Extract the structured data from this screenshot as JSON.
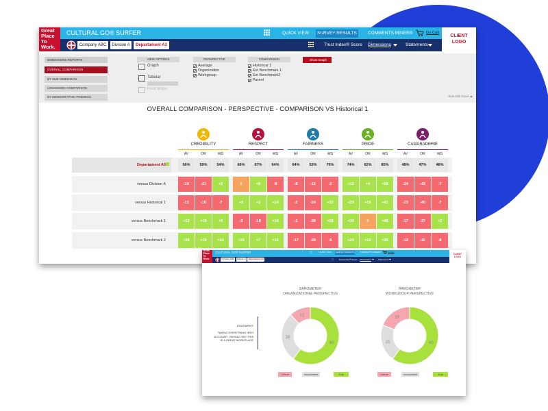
{
  "main": {
    "brand": "Great Place To Work.",
    "app_title": "CULTURAL GO® SURFER",
    "nav": [
      "QUICK VIEW",
      "SURVEY RESULTS",
      "COMMENTS MINER®"
    ],
    "cart": "Go Cart",
    "client_logo": "CLIENT LOGO",
    "breadcrumb": [
      "Company ABC",
      "Division A",
      "Departament A3"
    ],
    "subnav": [
      "Trust Index® Score",
      "Dimensions",
      "Statements"
    ],
    "reports": {
      "title": "DIMENSIONS REPORTS",
      "items": [
        "OVERALL COMPARISON",
        "BY SUB DIMENSION",
        "LOCKDOWN COMPARISON",
        "BY DEMOGRAPHIC FINDINGS"
      ]
    },
    "view_options": {
      "title": "VIEW OPTIONS",
      "items": [
        "Graph",
        "Tabular",
        "Heat Maps"
      ]
    },
    "perspective": {
      "title": "PERSPECTIVE",
      "items": [
        "Average",
        "Organization",
        "Workgroup"
      ]
    },
    "comparison": {
      "title": "COMPARISON",
      "items": [
        "Historical 1",
        "Ext Benchmark 1",
        "Ext Benchmark2",
        "Parent"
      ]
    },
    "show_graph": "Show Graph",
    "hide_drill": "Hide Drill Down",
    "heading": "OVERALL COMPARISON - PERSPECTIVE  - COMPARISON VS Historical 1",
    "table": {
      "dimensions": [
        "CREDIBILITY",
        "RESPECT",
        "FAIRNESS",
        "PRIDE",
        "CAMARADERIE"
      ],
      "subcolumns": [
        "AV",
        "OR",
        "WG"
      ],
      "rows": [
        {
          "label": "Departament A3",
          "cells": [
            [
              "56%",
              "59%",
              "54%"
            ],
            [
              "66%",
              "67%",
              "64%"
            ],
            [
              "64%",
              "53%",
              "76%"
            ],
            [
              "74%",
              "62%",
              "85%"
            ],
            [
              "48%",
              "47%",
              "48%"
            ]
          ]
        },
        {
          "label": "versus Division A",
          "cells": [
            [
              "-10",
              "-21",
              "+2"
            ],
            [
              "0",
              "+8",
              "-9"
            ],
            [
              "-8",
              "-12",
              "-2"
            ],
            [
              "+12",
              "+4",
              "+18"
            ],
            [
              "-24",
              "-43",
              "-7"
            ]
          ]
        },
        {
          "label": "versus Historical 1",
          "cells": [
            [
              "-12",
              "-16",
              "-7"
            ],
            [
              "+9",
              "+3",
              "+14"
            ],
            [
              "-2",
              "-24",
              "+22"
            ],
            [
              "+29",
              "+16",
              "+41"
            ],
            [
              "-23",
              "-40",
              "-7"
            ]
          ]
        },
        {
          "label": "versus Benchmark 1",
          "cells": [
            [
              "+12",
              "+19",
              "+6"
            ],
            [
              "-3",
              "-16",
              "+14"
            ],
            [
              "-1",
              "-26",
              "+28"
            ],
            [
              "+30",
              "0",
              "+48"
            ],
            [
              "-17",
              "-37",
              "+2"
            ]
          ]
        },
        {
          "label": "versus Benchmark 2",
          "cells": [
            [
              "+16",
              "+19",
              "+14"
            ],
            [
              "+10",
              "+7",
              "+12"
            ],
            [
              "-17",
              "-29",
              "-5"
            ],
            [
              "+24",
              "+12",
              "+35"
            ],
            [
              "-12",
              "-15",
              "-8"
            ]
          ]
        }
      ]
    }
  },
  "barometer": {
    "statement_label": "STATEMENT:",
    "statement": "TAKING EVERYTHING INTO ACCOUNT, I WOULD SAY THIS IS A GREAT WORKPLACE",
    "legend": [
      "Untrue",
      "Inconsistent",
      "True"
    ],
    "colors": [
      "#f5a6ae",
      "#dedede",
      "#a8e03c"
    ],
    "charts": [
      {
        "type": "pie",
        "title": [
          "BAROMETER",
          "ORGANIZATIONAL PERSPECTIVE"
        ],
        "values": [
          12,
          28,
          60
        ]
      },
      {
        "type": "pie",
        "title": [
          "BAROMETER",
          "WORKGROUP PERSPECTIVE"
        ],
        "values": [
          19,
          21,
          60
        ]
      }
    ]
  }
}
